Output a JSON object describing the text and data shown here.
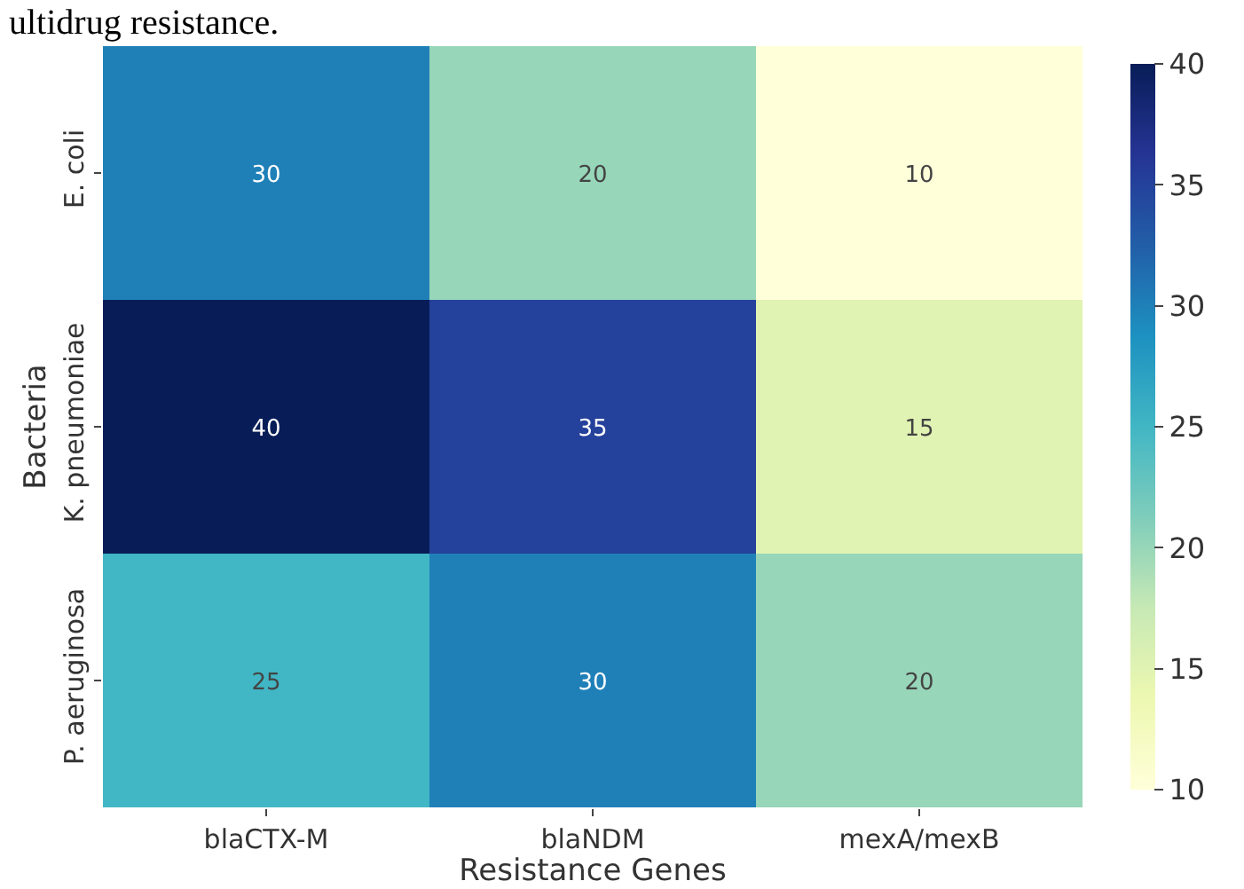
{
  "chart_data": {
    "type": "heatmap",
    "xlabel": "Resistance Genes",
    "ylabel": "Bacteria",
    "annotations": [
      "ultidrug resistance."
    ],
    "categories": [
      "blaCTX-M",
      "blaNDM",
      "mexA/mexB"
    ],
    "y_categories": [
      "E. coli",
      "K. pneumoniae",
      "P. aeruginosa"
    ],
    "cells": [
      [
        30,
        20,
        10
      ],
      [
        40,
        35,
        15
      ],
      [
        25,
        30,
        20
      ]
    ],
    "data_labels": true,
    "clim": [
      10,
      40
    ],
    "cticks": [
      10,
      15,
      20,
      25,
      30,
      35,
      40
    ]
  }
}
